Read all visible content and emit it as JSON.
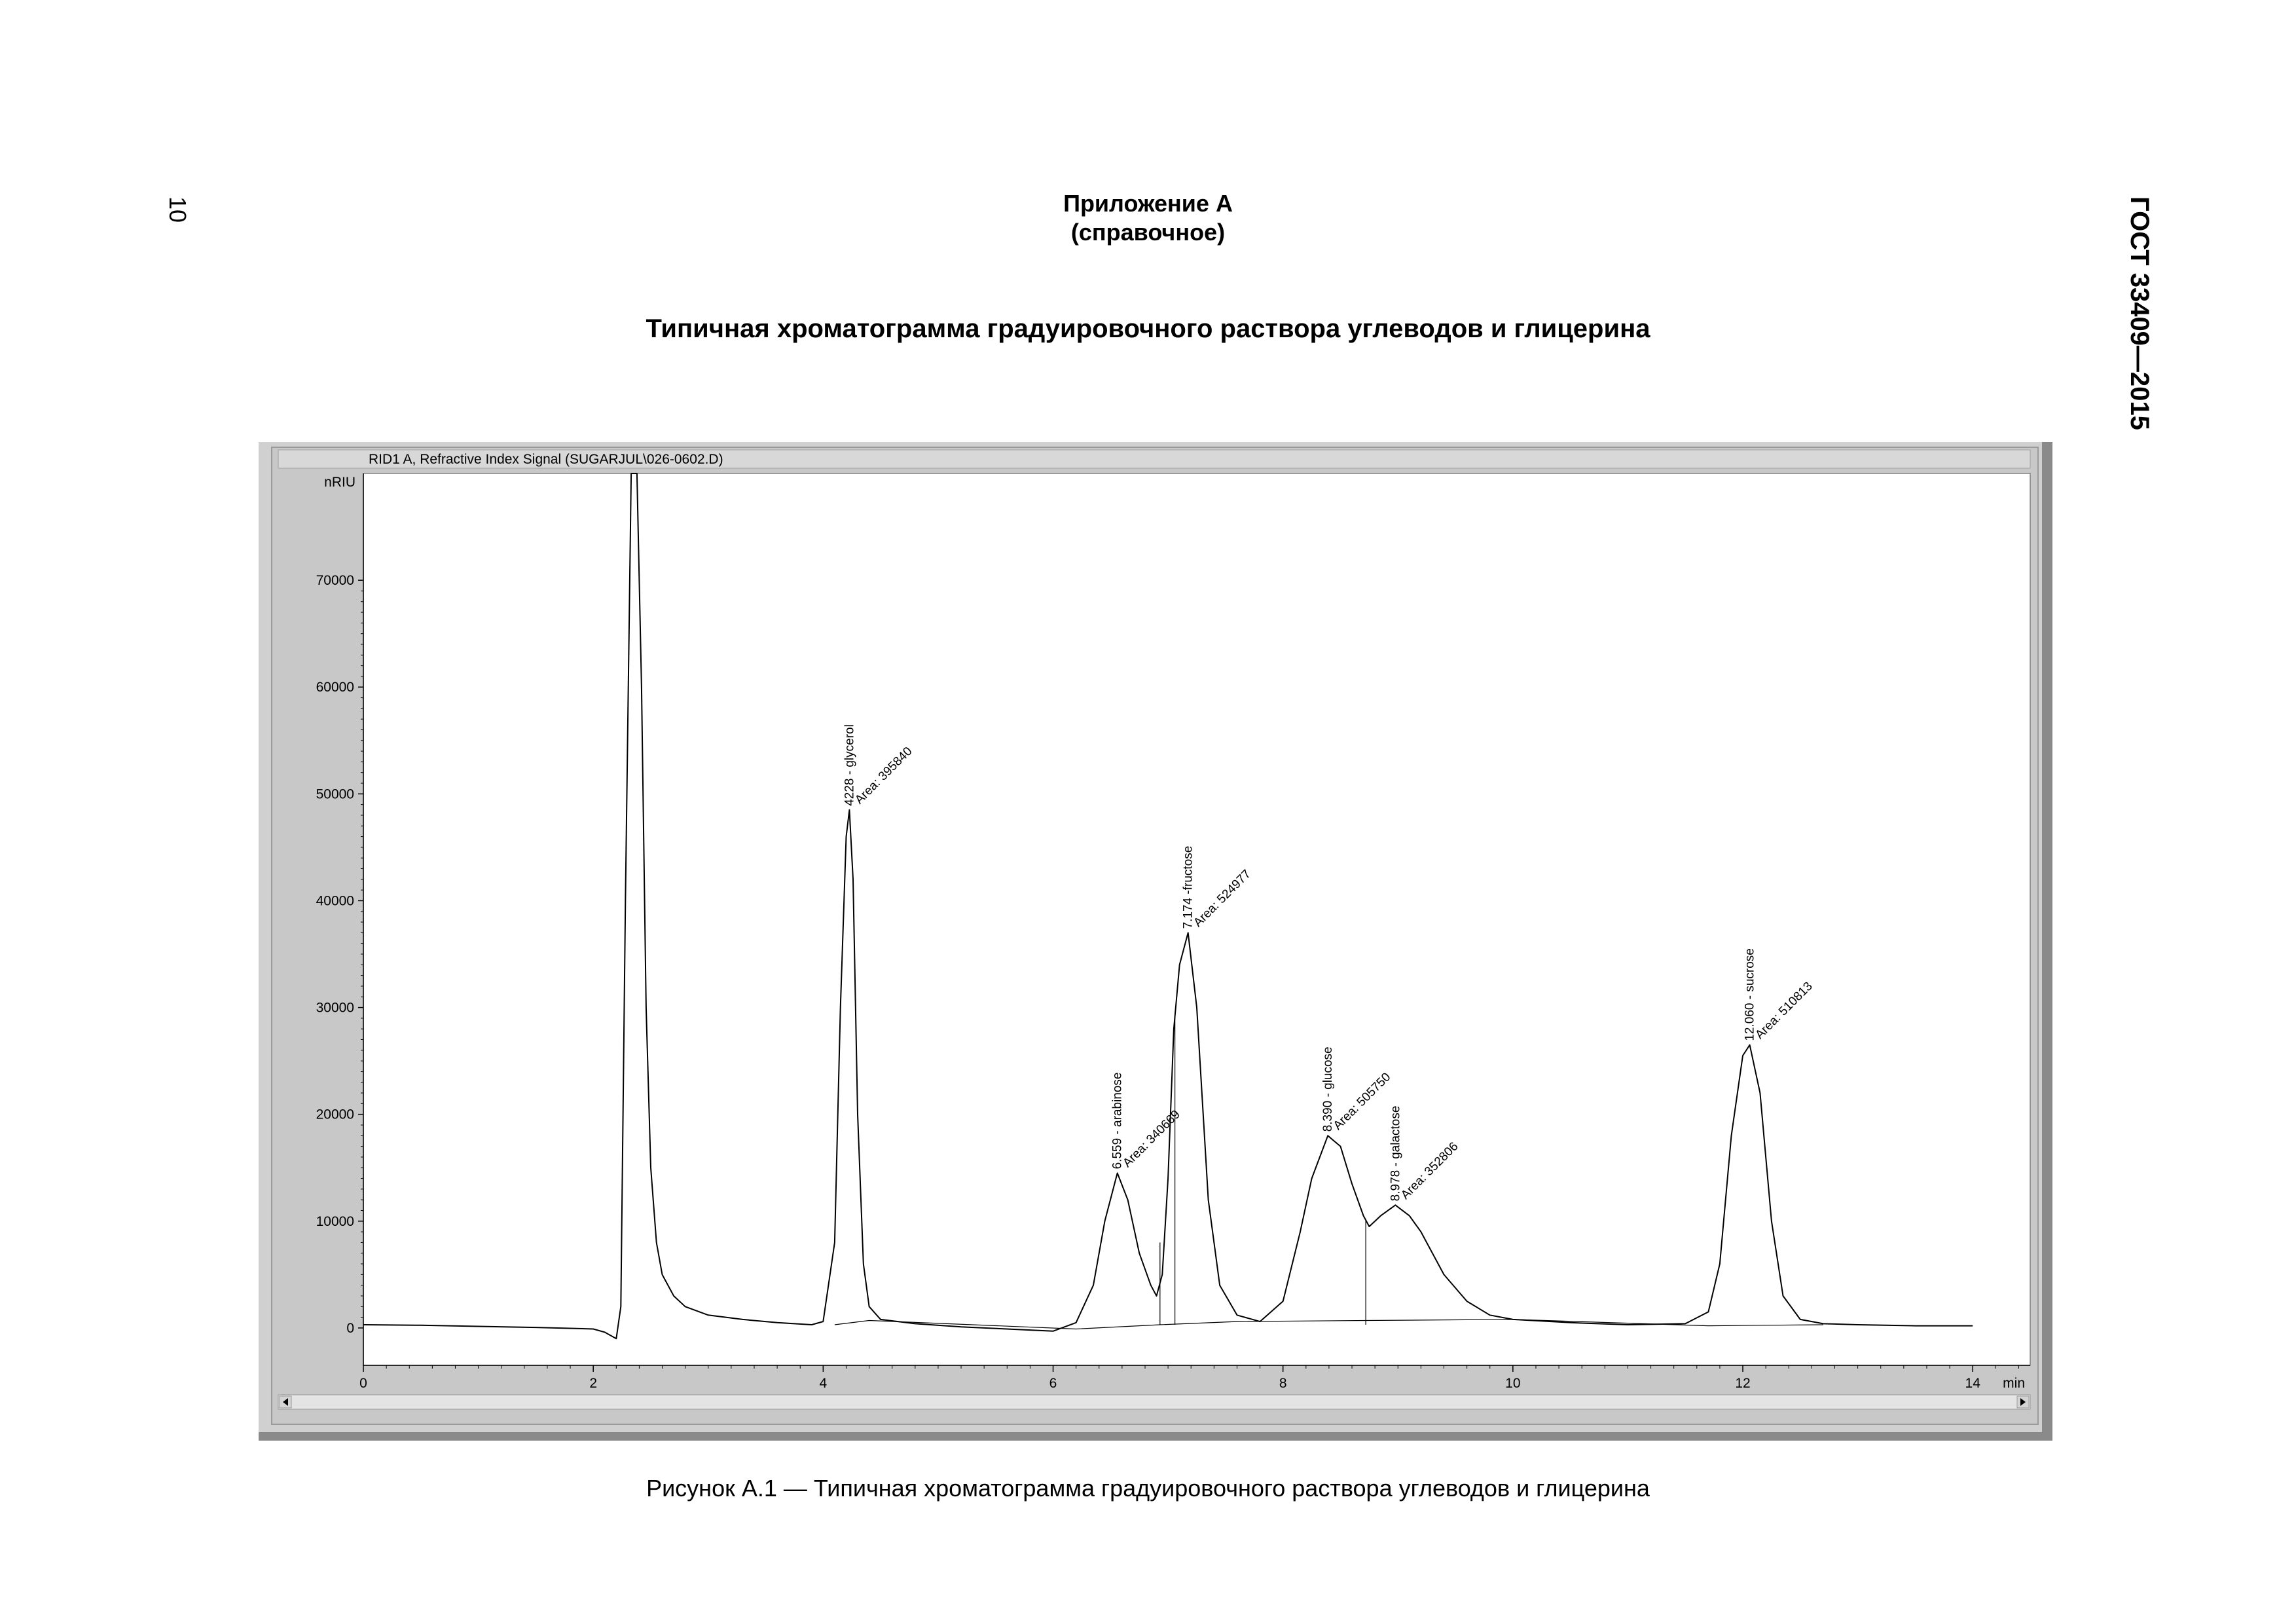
{
  "page": {
    "page_number": "10",
    "doc_code": "ГОСТ 33409—2015",
    "appendix_title": "Приложение А",
    "appendix_note": "(справочное)",
    "heading": "Типичная хроматограмма градуировочного раствора углеводов и глицерина",
    "caption": "Рисунок А.1 — Типичная хроматограмма градуировочного раствора углеводов и глицерина"
  },
  "chart_data": {
    "type": "line",
    "title": "RID1 A, Refractive Index Signal (SUGARJUL\\026-0602.D)",
    "ylabel": "nRIU",
    "xlabel": "min",
    "xlim": [
      0,
      14.5
    ],
    "ylim": [
      -3500,
      80000
    ],
    "x_ticks": [
      0,
      2,
      4,
      6,
      8,
      10,
      12,
      14
    ],
    "x_tick_labels": [
      "0",
      "2",
      "4",
      "6",
      "8",
      "10",
      "12",
      "14"
    ],
    "y_ticks": [
      0,
      10000,
      20000,
      30000,
      40000,
      50000,
      60000,
      70000
    ],
    "y_tick_labels": [
      "0",
      "10000",
      "20000",
      "30000",
      "40000",
      "50000",
      "60000",
      "70000"
    ],
    "grid": false,
    "colors": {
      "frame_bg": "#c8c8c8",
      "plot_bg": "#ffffff",
      "line": "#000000"
    },
    "series": [
      {
        "x": [
          0,
          0.5,
          1.0,
          1.5,
          2.0,
          2.1,
          2.2,
          2.24,
          2.28,
          2.33,
          2.38,
          2.42,
          2.46,
          2.5,
          2.55,
          2.6,
          2.7,
          2.8,
          3.0,
          3.3,
          3.6,
          3.9,
          4.0,
          4.1,
          4.15,
          4.2,
          4.228,
          4.26,
          4.3,
          4.35,
          4.4,
          4.5,
          4.8,
          5.2,
          5.6,
          6.0,
          6.2,
          6.35,
          6.45,
          6.559,
          6.65,
          6.75,
          6.85,
          6.9,
          6.95,
          7.0,
          7.05,
          7.1,
          7.174,
          7.25,
          7.35,
          7.45,
          7.6,
          7.8,
          8.0,
          8.15,
          8.25,
          8.39,
          8.5,
          8.6,
          8.7,
          8.75,
          8.85,
          8.978,
          9.1,
          9.2,
          9.4,
          9.6,
          9.8,
          10.0,
          10.5,
          11.0,
          11.5,
          11.7,
          11.8,
          11.9,
          12.0,
          12.06,
          12.15,
          12.25,
          12.35,
          12.5,
          12.7,
          13.0,
          13.5,
          14.0
        ],
        "y": [
          300,
          250,
          150,
          50,
          -100,
          -400,
          -1000,
          2000,
          40000,
          82000,
          82000,
          60000,
          30000,
          15000,
          8000,
          5000,
          3000,
          2000,
          1200,
          800,
          500,
          300,
          600,
          8000,
          30000,
          46000,
          48500,
          42000,
          20000,
          6000,
          2000,
          800,
          400,
          100,
          -100,
          -300,
          500,
          4000,
          10000,
          14500,
          12000,
          7000,
          4000,
          3000,
          5000,
          14000,
          28000,
          34000,
          37000,
          30000,
          12000,
          4000,
          1200,
          600,
          2500,
          9000,
          14000,
          18000,
          17000,
          13500,
          10500,
          9500,
          10500,
          11500,
          10500,
          9000,
          5000,
          2500,
          1200,
          800,
          500,
          300,
          400,
          1500,
          6000,
          18000,
          25500,
          26500,
          22000,
          10000,
          3000,
          800,
          400,
          300,
          200,
          200
        ]
      },
      {
        "x": [
          4.1,
          4.4,
          6.2,
          6.93,
          6.93,
          7.6,
          7.6,
          8.72,
          8.72,
          10.0,
          11.7,
          12.7
        ],
        "y": [
          300,
          700,
          -100,
          300,
          300,
          600,
          600,
          700,
          700,
          800,
          200,
          300
        ]
      }
    ],
    "peak_labels": [
      {
        "x": 4.228,
        "y": 48500,
        "name": "4228 - glycerol",
        "area": "Area: 395840"
      },
      {
        "x": 6.559,
        "y": 14500,
        "name": "6.559 - arabinose",
        "area": "Area: 340669"
      },
      {
        "x": 7.174,
        "y": 37000,
        "name": "7.174 -fructose",
        "area": "Area: 524977"
      },
      {
        "x": 8.39,
        "y": 18000,
        "name": "8.390 - glucose",
        "area": "Area: 505750"
      },
      {
        "x": 8.978,
        "y": 11500,
        "name": "8.978 - galactose",
        "area": "Area: 352806"
      },
      {
        "x": 12.06,
        "y": 26500,
        "name": "12.060 - sucrose",
        "area": "Area: 510813"
      }
    ],
    "drop_lines_x": [
      6.93,
      7.06,
      8.72
    ]
  }
}
